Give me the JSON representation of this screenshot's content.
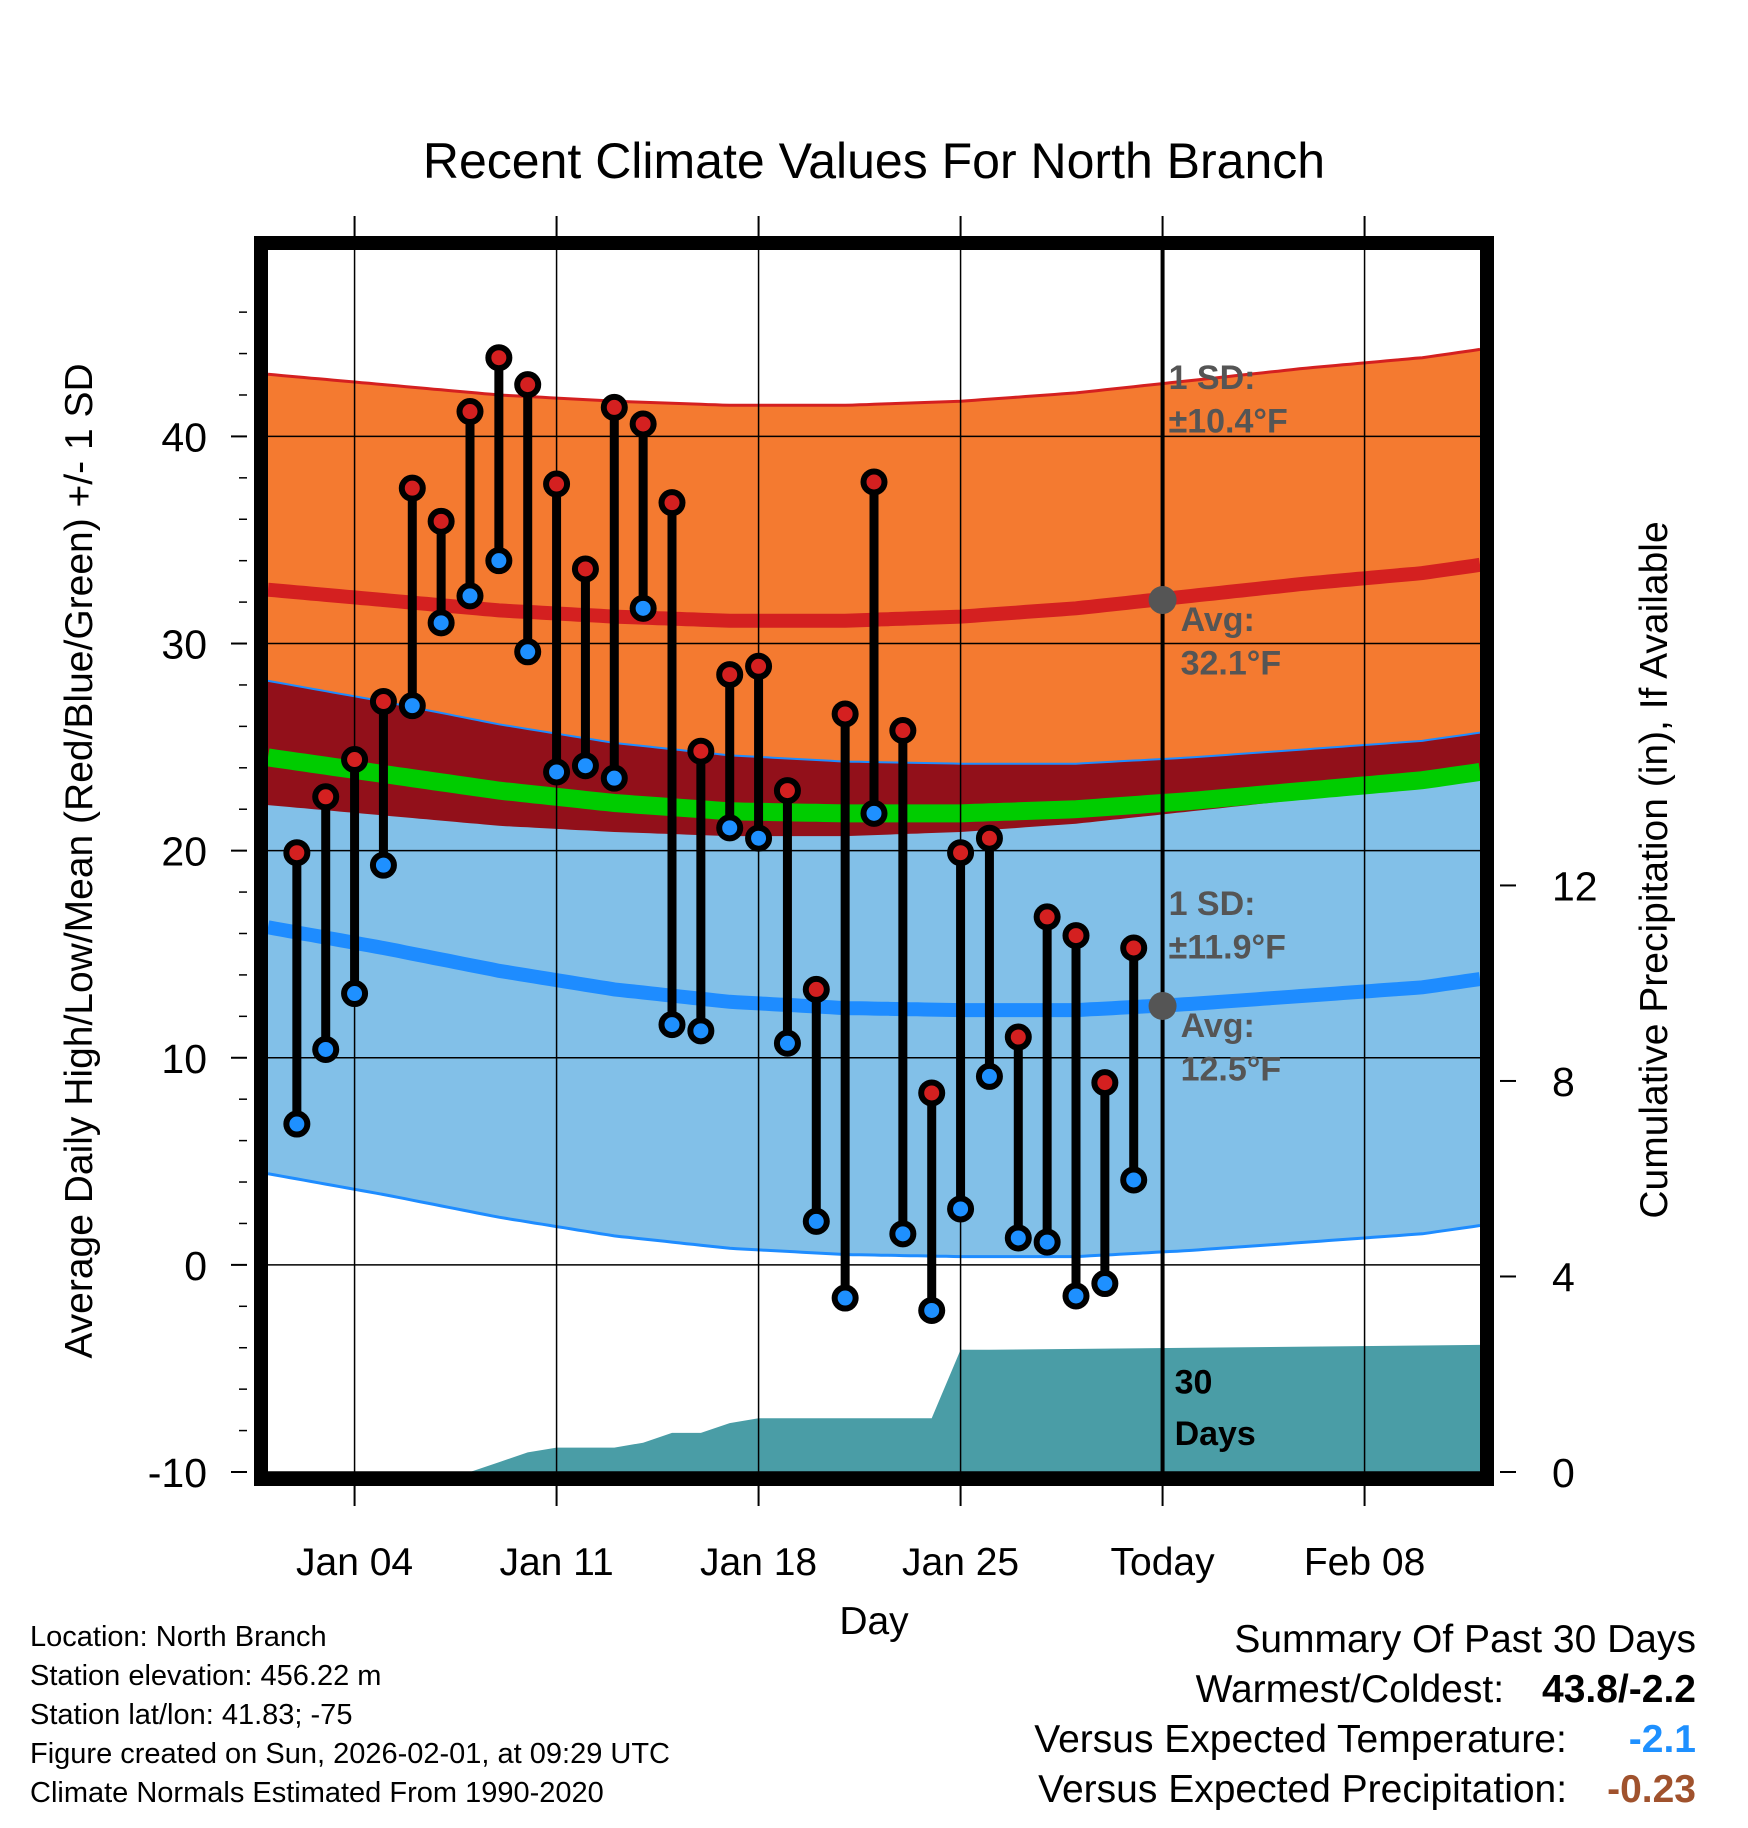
{
  "chart_data": {
    "type": "line",
    "title": "Recent Climate Values For North Branch",
    "xlabel": "Day",
    "ylabel": "Average Daily High/Low/Mean (Red/Blue/Green) +/- 1 SD",
    "ylabel_right": "Cumulative Precipitation (in), If Available",
    "xlim": [
      1,
      43
    ],
    "ylim": [
      -10,
      49
    ],
    "ylim_right": [
      0,
      25
    ],
    "x_ticks": [
      {
        "x": 4,
        "label": "Jan 04"
      },
      {
        "x": 11,
        "label": "Jan 11"
      },
      {
        "x": 18,
        "label": "Jan 18"
      },
      {
        "x": 25,
        "label": "Jan 25"
      },
      {
        "x": 32,
        "label": "Today"
      },
      {
        "x": 39,
        "label": "Feb 08"
      }
    ],
    "y_ticks": [
      -10,
      0,
      10,
      20,
      30,
      40
    ],
    "y_ticks_right": [
      0,
      4,
      8,
      12
    ],
    "daily": {
      "x": [
        2,
        3,
        4,
        5,
        6,
        7,
        8,
        9,
        10,
        11,
        12,
        13,
        14,
        15,
        16,
        17,
        18,
        19,
        20,
        21,
        22,
        23,
        24,
        25,
        26,
        27,
        28,
        29,
        30,
        31
      ],
      "high": [
        19.9,
        22.6,
        24.4,
        27.2,
        37.5,
        35.9,
        41.2,
        43.8,
        42.5,
        37.7,
        33.6,
        41.4,
        40.6,
        36.8,
        24.8,
        28.5,
        28.9,
        22.9,
        13.3,
        26.6,
        37.8,
        25.8,
        8.3,
        19.9,
        20.6,
        11.0,
        16.8,
        15.9,
        8.8,
        15.3
      ],
      "low": [
        6.8,
        10.4,
        13.1,
        19.3,
        27.0,
        31.0,
        32.3,
        34.0,
        29.6,
        23.8,
        24.1,
        23.5,
        31.7,
        11.6,
        11.3,
        21.1,
        20.6,
        10.7,
        2.1,
        -1.6,
        21.8,
        1.5,
        -2.2,
        2.7,
        9.1,
        1.3,
        1.1,
        -1.5,
        -0.9,
        4.1
      ]
    },
    "normals": {
      "x": [
        1,
        5,
        9,
        13,
        17,
        21,
        25,
        29,
        33,
        37,
        41,
        43
      ],
      "high_avg": [
        32.6,
        32.1,
        31.6,
        31.3,
        31.1,
        31.1,
        31.3,
        31.7,
        32.3,
        32.9,
        33.4,
        33.8
      ],
      "high_sd": 10.4,
      "low_avg": [
        16.3,
        15.3,
        14.2,
        13.3,
        12.7,
        12.4,
        12.3,
        12.3,
        12.6,
        13.0,
        13.4,
        13.8
      ],
      "low_sd": 11.9,
      "mean_avg": [
        24.5,
        23.7,
        22.9,
        22.3,
        21.9,
        21.8,
        21.8,
        22.0,
        22.4,
        22.9,
        23.4,
        23.8
      ]
    },
    "precip": {
      "x": [
        1,
        8,
        9,
        10,
        11,
        12,
        13,
        14,
        15,
        16,
        17,
        18,
        19,
        20,
        21,
        22,
        23,
        24,
        25,
        26,
        43
      ],
      "cum": [
        0,
        0,
        0.2,
        0.4,
        0.5,
        0.5,
        0.5,
        0.6,
        0.8,
        0.8,
        1.0,
        1.1,
        1.1,
        1.1,
        1.1,
        1.1,
        1.1,
        1.1,
        2.5,
        2.5,
        2.6
      ]
    },
    "today_x": 32,
    "annotations": {
      "high_sd_label": "1 SD:",
      "high_sd_value": "±10.4°F",
      "high_avg_label": "Avg:",
      "high_avg_value": "32.1°F",
      "high_avg": 32.1,
      "low_sd_label": "1 SD:",
      "low_sd_value": "±11.9°F",
      "low_avg_label": "Avg:",
      "low_avg_value": "12.5°F",
      "low_avg": 12.5,
      "days_line1": "30",
      "days_line2": "Days"
    }
  },
  "colors": {
    "high_band": "#f47a30",
    "high_line": "#d42020",
    "low_band": "#82c0e8",
    "low_line": "#1e8cff",
    "overlap": "#92101a",
    "mean_line": "#00cc00",
    "precip": "#4a9da6",
    "high_dot": "#d42020",
    "low_dot": "#1e90ff",
    "annot": "#555555"
  },
  "footer": {
    "location": "Location: North Branch",
    "elevation": "Station elevation: 456.22 m",
    "latlon": "Station lat/lon: 41.83; -75",
    "created": "Figure created on Sun, 2026-02-01, at 09:29 UTC",
    "normals": "Climate Normals Estimated From 1990-2020"
  },
  "summary": {
    "heading": "Summary Of Past 30 Days",
    "warmest_label": "Warmest/Coldest:",
    "warmest_value": "43.8/-2.2",
    "temp_label": "Versus Expected Temperature:",
    "temp_value": "-2.1",
    "temp_color": "#1e90ff",
    "precip_label": "Versus Expected Precipitation:",
    "precip_value": "-0.23",
    "precip_color": "#a0522d"
  }
}
